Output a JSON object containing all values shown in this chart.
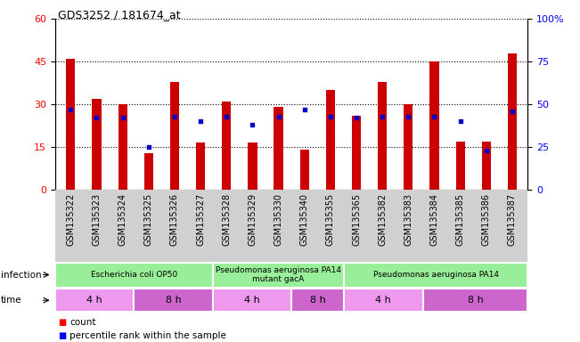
{
  "title": "GDS3252 / 181674_at",
  "samples": [
    "GSM135322",
    "GSM135323",
    "GSM135324",
    "GSM135325",
    "GSM135326",
    "GSM135327",
    "GSM135328",
    "GSM135329",
    "GSM135330",
    "GSM135340",
    "GSM135355",
    "GSM135365",
    "GSM135382",
    "GSM135383",
    "GSM135384",
    "GSM135385",
    "GSM135386",
    "GSM135387"
  ],
  "counts": [
    46,
    32,
    30,
    13,
    38,
    16.5,
    31,
    16.5,
    29,
    14,
    35,
    26,
    38,
    30,
    45,
    17,
    17,
    48
  ],
  "percentile_ranks": [
    47,
    42,
    42,
    25,
    43,
    40,
    43,
    38,
    43,
    47,
    43,
    42,
    43,
    43,
    43,
    40,
    23,
    46
  ],
  "ylim_left": [
    0,
    60
  ],
  "ylim_right": [
    0,
    100
  ],
  "yticks_left": [
    0,
    15,
    30,
    45,
    60
  ],
  "yticks_right": [
    0,
    25,
    50,
    75,
    100
  ],
  "bar_color": "#cc0000",
  "dot_color": "#0000cc",
  "xtick_bg": "#d0d0d0",
  "infection_groups": [
    {
      "label": "Escherichia coli OP50",
      "start": 0,
      "end": 6,
      "color": "#99ee99"
    },
    {
      "label": "Pseudomonas aeruginosa PA14\nmutant gacA",
      "start": 6,
      "end": 11,
      "color": "#99ee99"
    },
    {
      "label": "Pseudomonas aeruginosa PA14",
      "start": 11,
      "end": 18,
      "color": "#99ee99"
    }
  ],
  "time_groups": [
    {
      "label": "4 h",
      "start": 0,
      "end": 3,
      "color": "#ee99ee"
    },
    {
      "label": "8 h",
      "start": 3,
      "end": 6,
      "color": "#cc66cc"
    },
    {
      "label": "4 h",
      "start": 6,
      "end": 9,
      "color": "#ee99ee"
    },
    {
      "label": "8 h",
      "start": 9,
      "end": 11,
      "color": "#cc66cc"
    },
    {
      "label": "4 h",
      "start": 11,
      "end": 14,
      "color": "#ee99ee"
    },
    {
      "label": "8 h",
      "start": 14,
      "end": 18,
      "color": "#cc66cc"
    }
  ],
  "legend_count_label": "count",
  "legend_percentile_label": "percentile rank within the sample"
}
